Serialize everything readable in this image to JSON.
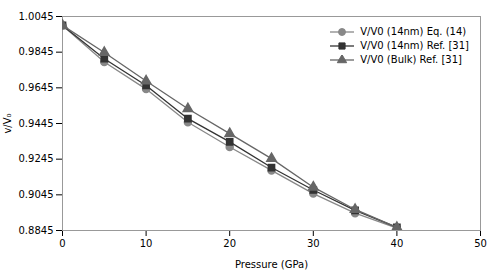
{
  "chart_data": {
    "type": "line",
    "xlabel": "Pressure (GPa)",
    "ylabel": "v/V₀",
    "series": [
      {
        "name": "V/V0 (14nm) Eq. (14)",
        "color": "#888888",
        "marker": "circle",
        "x": [
          0,
          5,
          10,
          15,
          20,
          25,
          30,
          35,
          40
        ],
        "values": [
          0.9995,
          0.979,
          0.9638,
          0.9452,
          0.9313,
          0.9182,
          0.9052,
          0.8942,
          0.8858
        ]
      },
      {
        "name": "V/V0 (14nm) Ref. [31]",
        "color": "#333333",
        "marker": "square",
        "x": [
          0,
          5,
          10,
          15,
          20,
          25,
          30,
          35,
          40
        ],
        "values": [
          0.9995,
          0.9808,
          0.9658,
          0.9472,
          0.9342,
          0.9198,
          0.9072,
          0.8958,
          0.8862
        ]
      },
      {
        "name": "V/V0 (Bulk) Ref. [31]",
        "color": "#666666",
        "marker": "triangle",
        "x": [
          0,
          5,
          10,
          15,
          20,
          25,
          30,
          35,
          40
        ],
        "values": [
          0.9995,
          0.9843,
          0.9683,
          0.9528,
          0.9388,
          0.9248,
          0.9088,
          0.8963,
          0.8862
        ]
      }
    ],
    "xlim": [
      0,
      50
    ],
    "xticks": [
      0,
      10,
      20,
      30,
      40,
      50
    ],
    "ylim": [
      0.8845,
      1.0045
    ],
    "yticks": [
      0.8845,
      0.9045,
      0.9245,
      0.9445,
      0.9645,
      0.9845,
      1.0045
    ],
    "grid": false,
    "legend": "upper right"
  }
}
